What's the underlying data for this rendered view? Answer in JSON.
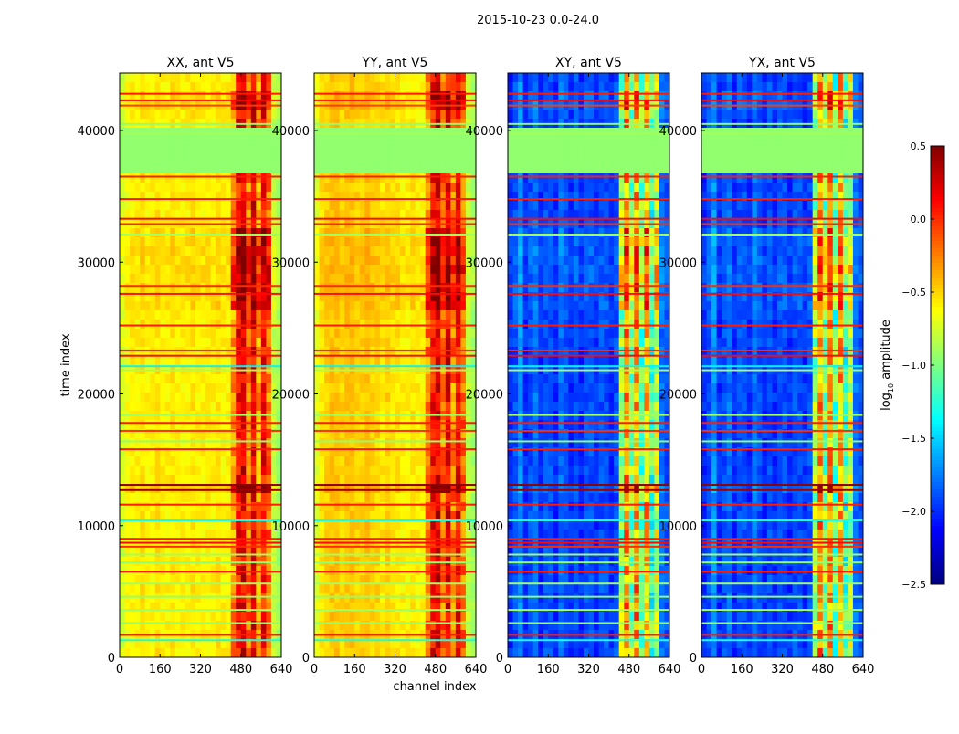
{
  "chart_data": {
    "type": "heatmap",
    "title": "2015-10-23 0.0-24.0",
    "xlabel": "channel index",
    "ylabel": "time index",
    "xlim": [
      0,
      640
    ],
    "ylim": [
      0,
      44370
    ],
    "xticks": [
      "0",
      "160",
      "320",
      "480",
      "640"
    ],
    "yticks": [
      "0",
      "10000",
      "20000",
      "30000",
      "40000"
    ],
    "colorbar": {
      "label_main": "log",
      "label_sub": "10",
      "label_rest": " amplitude",
      "range": [
        -2.5,
        0.5
      ],
      "ticks": [
        "0.5",
        "0.0",
        "−0.5",
        "−1.0",
        "−1.5",
        "−2.0",
        "−2.5"
      ],
      "colormap": "jet"
    },
    "panels": [
      {
        "title": "XX, ant V5",
        "column_profile": [
          -0.75,
          -0.65,
          -0.6,
          -0.6,
          -0.55,
          -0.6,
          -0.6,
          -0.55,
          -0.6,
          -0.6,
          -0.55,
          -0.6,
          -0.6,
          -0.6,
          -0.55,
          -0.6,
          -0.6,
          -0.6,
          -0.6,
          -0.55,
          -0.6,
          -0.6,
          -0.3,
          0.1,
          0.2,
          -0.2,
          0.15,
          -0.3,
          0.1,
          -0.2,
          -0.8,
          -0.9
        ],
        "noise": 0.25
      },
      {
        "title": "YY, ant V5",
        "column_profile": [
          -0.7,
          -0.55,
          -0.5,
          -0.45,
          -0.45,
          -0.5,
          -0.45,
          -0.45,
          -0.5,
          -0.5,
          -0.45,
          -0.5,
          -0.5,
          -0.55,
          -0.5,
          -0.55,
          -0.55,
          -0.6,
          -0.6,
          -0.55,
          -0.6,
          -0.6,
          -0.25,
          0.1,
          0.2,
          -0.2,
          0.15,
          -0.25,
          0.1,
          -0.2,
          -0.8,
          -0.9
        ],
        "noise": 0.25
      },
      {
        "title": "XY, ant V5",
        "column_profile": [
          -2.0,
          -1.9,
          -1.7,
          -2.0,
          -1.9,
          -1.8,
          -2.0,
          -1.9,
          -1.9,
          -2.0,
          -1.8,
          -1.9,
          -2.0,
          -1.9,
          -2.0,
          -1.9,
          -1.9,
          -2.0,
          -1.9,
          -1.9,
          -2.0,
          -1.9,
          -0.9,
          -0.3,
          -1.0,
          -0.3,
          -1.1,
          -0.4,
          -1.2,
          -0.8,
          -1.8,
          -1.9
        ],
        "noise": 0.35
      },
      {
        "title": "YX, ant V5",
        "column_profile": [
          -2.0,
          -1.9,
          -1.7,
          -2.0,
          -1.9,
          -1.8,
          -2.0,
          -1.9,
          -1.9,
          -2.0,
          -1.8,
          -1.9,
          -2.0,
          -1.9,
          -2.0,
          -1.9,
          -1.9,
          -2.0,
          -1.9,
          -1.9,
          -2.0,
          -1.9,
          -0.9,
          -0.3,
          -1.0,
          -0.3,
          -1.1,
          -0.4,
          -1.2,
          -0.8,
          -1.8,
          -1.9
        ],
        "noise": 0.35
      }
    ],
    "flagged_band": {
      "from": 36500,
      "to": 40000,
      "value": -0.95
    },
    "hot_rows": [
      {
        "from": 12300,
        "to": 13400,
        "boost": 0.5
      },
      {
        "from": 26000,
        "to": 32500,
        "boost": 0.3
      },
      {
        "from": 41500,
        "to": 43000,
        "boost": 0.3
      }
    ],
    "lines": [
      {
        "t": 42800,
        "value": 0.05
      },
      {
        "t": 42300,
        "value": 0.1
      },
      {
        "t": 41900,
        "value": -0.05
      },
      {
        "t": 40500,
        "value": -0.95
      },
      {
        "t": 39800,
        "value": -0.9
      },
      {
        "t": 39200,
        "value": -0.95
      },
      {
        "t": 36500,
        "value": 0.05
      },
      {
        "t": 34800,
        "value": 0.05
      },
      {
        "t": 33300,
        "value": 0.1
      },
      {
        "t": 32900,
        "value": 0.0
      },
      {
        "t": 32100,
        "value": -0.9
      },
      {
        "t": 28200,
        "value": 0.0
      },
      {
        "t": 27600,
        "value": 0.1
      },
      {
        "t": 25200,
        "value": 0.05
      },
      {
        "t": 23300,
        "value": 0.0
      },
      {
        "t": 22900,
        "value": 0.1
      },
      {
        "t": 22100,
        "value": -1.4
      },
      {
        "t": 21800,
        "value": -0.9
      },
      {
        "t": 18400,
        "value": -0.9
      },
      {
        "t": 17800,
        "value": 0.05
      },
      {
        "t": 17200,
        "value": 0.0
      },
      {
        "t": 16400,
        "value": -0.95
      },
      {
        "t": 15800,
        "value": 0.05
      },
      {
        "t": 13100,
        "value": 0.45
      },
      {
        "t": 12700,
        "value": 0.4
      },
      {
        "t": 11600,
        "value": 0.05
      },
      {
        "t": 10400,
        "value": -1.3
      },
      {
        "t": 9000,
        "value": 0.05
      },
      {
        "t": 8700,
        "value": 0.1
      },
      {
        "t": 8400,
        "value": 0.0
      },
      {
        "t": 7800,
        "value": -0.9
      },
      {
        "t": 7200,
        "value": -0.95
      },
      {
        "t": 6500,
        "value": 0.05
      },
      {
        "t": 5600,
        "value": -0.9
      },
      {
        "t": 4600,
        "value": -0.95
      },
      {
        "t": 3600,
        "value": -0.9
      },
      {
        "t": 2600,
        "value": -0.95
      },
      {
        "t": 1700,
        "value": 0.05
      },
      {
        "t": 1300,
        "value": -1.3
      }
    ]
  }
}
